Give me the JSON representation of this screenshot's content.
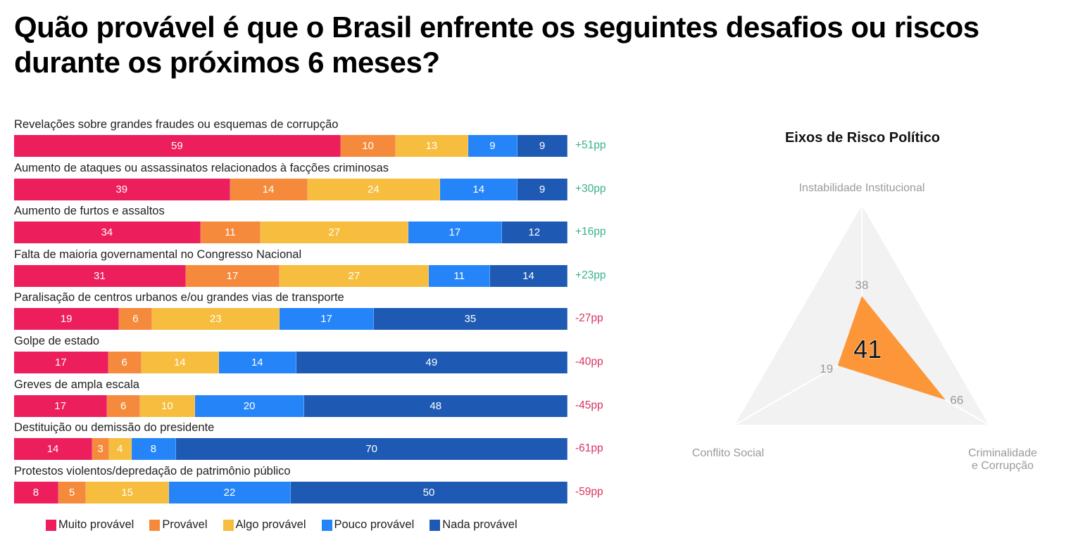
{
  "title": "Quão provável é que o Brasil enfrente os seguintes desafios ou riscos durante os próximos 6 meses?",
  "chart_data": [
    {
      "type": "bar",
      "orientation": "horizontal-stacked-100",
      "categories": [
        "Revelações sobre grandes fraudes ou esquemas de corrupção",
        "Aumento de ataques ou assassinatos relacionados à facções criminosas",
        "Aumento de furtos e assaltos",
        "Falta de maioria governamental no Congresso Nacional",
        "Paralisação de centros urbanos e/ou grandes vias de transporte",
        "Golpe de estado",
        "Greves de ampla escala",
        "Destituição ou demissão do presidente",
        "Protestos violentos/depredação de patrimônio público"
      ],
      "series": [
        {
          "name": "Muito provável",
          "color": "#EC1E5B",
          "values": [
            59,
            39,
            34,
            31,
            19,
            17,
            17,
            14,
            8
          ]
        },
        {
          "name": "Provável",
          "color": "#F58A3C",
          "values": [
            10,
            14,
            11,
            17,
            6,
            6,
            6,
            3,
            5
          ]
        },
        {
          "name": "Algo provável",
          "color": "#F6BD3E",
          "values": [
            13,
            24,
            27,
            27,
            23,
            14,
            10,
            4,
            15
          ]
        },
        {
          "name": "Pouco provável",
          "color": "#2585F8",
          "values": [
            9,
            14,
            17,
            11,
            17,
            14,
            20,
            8,
            22
          ]
        },
        {
          "name": "Nada provável",
          "color": "#1E5AB4",
          "values": [
            9,
            9,
            12,
            14,
            35,
            49,
            48,
            70,
            50
          ]
        }
      ],
      "net_labels": [
        "+51pp",
        "+30pp",
        "+16pp",
        "+23pp",
        "-27pp",
        "-40pp",
        "-45pp",
        "-61pp",
        "-59pp"
      ],
      "net_colors": {
        "positive": "#3BB08F",
        "negative": "#D8335F"
      },
      "legend_position": "bottom",
      "xlim": [
        0,
        100
      ],
      "grid": false
    },
    {
      "type": "radar",
      "title": "Eixos de Risco Político",
      "axes": [
        "Instabilidade Institucional",
        "Criminalidade e Corrupção",
        "Conflito Social"
      ],
      "axis_label_lines": {
        "Instabilidade Institucional": [
          "Instabilidade Institucional"
        ],
        "Criminalidade e Corrupção": [
          "Criminalidade",
          "e Corrupção"
        ],
        "Conflito Social": [
          "Conflito Social"
        ]
      },
      "values": [
        38,
        66,
        19
      ],
      "value_labels": [
        "38",
        "66",
        "19"
      ],
      "range": [
        0,
        100
      ],
      "center_label": "41",
      "fill_color": "#FD9638",
      "background_color": "#F2F2F2"
    }
  ]
}
